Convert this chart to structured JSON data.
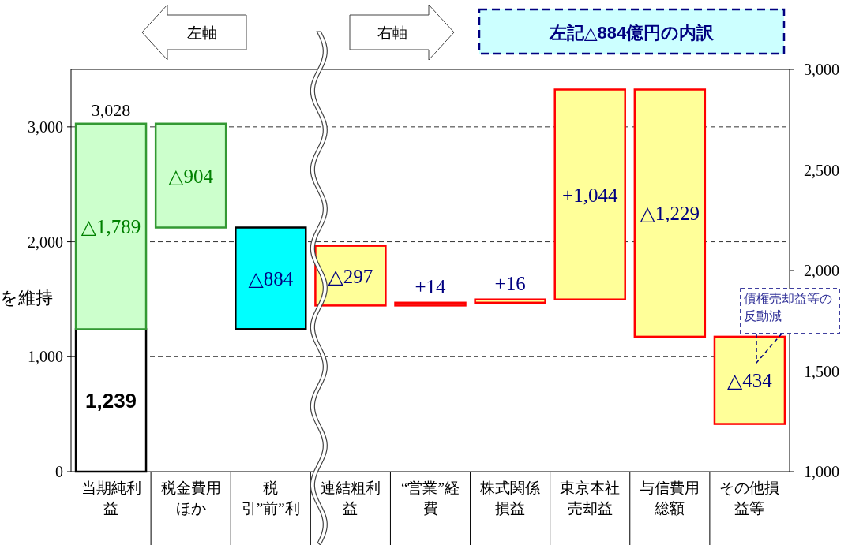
{
  "chart_data": {
    "type": "bar",
    "title": "左記△884億円の内訳",
    "categories": [
      "当期純利益",
      "税金費用ほか",
      "税引”前”利益",
      "連結粗利益",
      "“営業”経費",
      "株式関係損益",
      "東京本社売却益",
      "与信費用総額",
      "その他損益等"
    ],
    "series": [
      {
        "color": "#ffffff",
        "values": [
          1239,
          null,
          null,
          null,
          null,
          null,
          null,
          null,
          null
        ],
        "base": [
          0,
          null,
          null,
          null,
          null,
          null,
          null,
          null,
          null
        ],
        "value_labels": [
          "1,239",
          null,
          null,
          null,
          null,
          null,
          null,
          null,
          null
        ]
      },
      {
        "color": "#ccffcc",
        "values": [
          1789,
          -904,
          null,
          null,
          null,
          null,
          null,
          null,
          null
        ],
        "base": [
          1239,
          3028,
          null,
          null,
          null,
          null,
          null,
          null,
          null
        ],
        "value_labels": [
          "△1,789",
          "△904",
          null,
          null,
          null,
          null,
          null,
          null,
          null
        ]
      },
      {
        "color": "#00ffff",
        "values": [
          null,
          null,
          -884,
          null,
          null,
          null,
          null,
          null,
          null
        ],
        "base": [
          null,
          null,
          2124,
          null,
          null,
          null,
          null,
          null,
          null
        ],
        "value_labels": [
          null,
          null,
          "△884",
          null,
          null,
          null,
          null,
          null,
          null
        ]
      },
      {
        "axis": "y2",
        "colors": [
          null,
          null,
          null,
          "#ffff99",
          "#99cccc",
          "#ffff99",
          "#ffff99",
          "#ffff99",
          "#ffff99"
        ],
        "values": [
          null,
          null,
          null,
          -297,
          14,
          16,
          1044,
          -1229,
          -434
        ],
        "base": [
          null,
          null,
          null,
          2123,
          1826,
          1840,
          1856,
          2900,
          1671
        ],
        "value_labels": [
          null,
          null,
          null,
          "△297",
          "+14",
          "+16",
          "+1,044",
          "△1,229",
          "△434"
        ]
      }
    ],
    "ylim": [
      0,
      3500
    ],
    "yticks": [
      {
        "value": 0,
        "label": "0"
      },
      {
        "value": 1000,
        "label": "1,000"
      },
      {
        "value": 2000,
        "label": "2,000"
      },
      {
        "value": 3000,
        "label": "3,000"
      }
    ],
    "y2lim": [
      1000,
      3000
    ],
    "y2ticks": [
      {
        "value": 1000,
        "label": "1,000"
      },
      {
        "value": 1500,
        "label": "1,500"
      },
      {
        "value": 2000,
        "label": "2,000"
      },
      {
        "value": 2500,
        "label": "2,500"
      },
      {
        "value": 3000,
        "label": "3,000"
      }
    ],
    "grid": "y",
    "annotations": [
      "左軸",
      "右軸",
      "を維持",
      "債権売却益等の反動減",
      {
        "text": "3,028",
        "x": "当期純利益",
        "y": 3028
      }
    ]
  }
}
